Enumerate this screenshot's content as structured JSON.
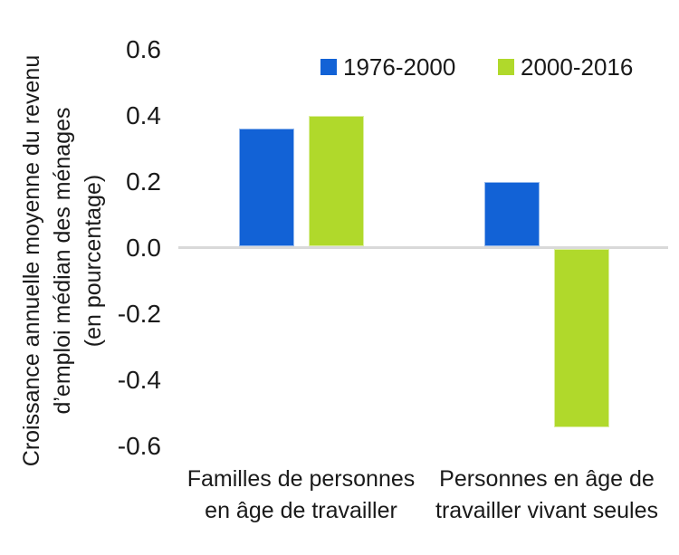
{
  "page": {
    "background": "#ffffff",
    "text_color": "#1a1a1a"
  },
  "chart_data": {
    "type": "bar",
    "title": "",
    "ylabel": "Croissance annuelle moyenne du revenu\nd’emploi médian des ménages\n(en pourcentage)",
    "xlabel": "",
    "categories": [
      "Familles de personnes\nen âge de travailler",
      "Personnes en âge de\ntravailler vivant seules"
    ],
    "series": [
      {
        "name": "1976-2000",
        "color": "#1262D6",
        "values": [
          0.36,
          0.2
        ]
      },
      {
        "name": "2000-2016",
        "color": "#B0D92B",
        "values": [
          0.4,
          -0.54
        ]
      }
    ],
    "ylim": [
      -0.6,
      0.6
    ],
    "yticks": [
      {
        "value": 0.6,
        "label": "0.6"
      },
      {
        "value": 0.4,
        "label": "0.4"
      },
      {
        "value": 0.2,
        "label": "0.2"
      },
      {
        "value": 0.0,
        "label": "0.0"
      },
      {
        "value": -0.2,
        "label": "-0.2"
      },
      {
        "value": -0.4,
        "label": "-0.4"
      },
      {
        "value": -0.6,
        "label": "-0.6"
      }
    ],
    "grid": "zero-line-only",
    "zero_line_color": "#D9D9D9",
    "legend_position": "top"
  }
}
